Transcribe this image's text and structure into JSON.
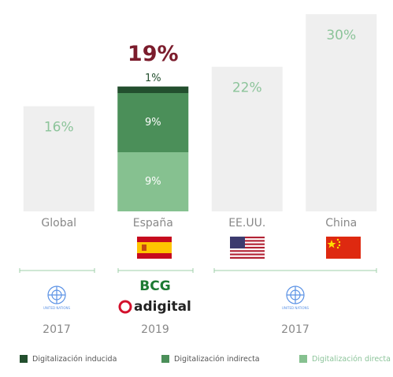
{
  "chart_data": {
    "type": "stacked_bar",
    "categories": [
      "Global",
      "España",
      "EE.UU.",
      "China"
    ],
    "series": [
      {
        "color": "#efefef",
        "label_color": "#8cc49a",
        "values": [
          16,
          null,
          22,
          30
        ],
        "value_labels": [
          "16%",
          null,
          "22%",
          "30%"
        ]
      },
      {
        "name": "Digitalización directa",
        "color": "#86c190",
        "label_color": "#ffffff",
        "values": [
          null,
          9,
          null,
          null
        ],
        "value_labels": [
          null,
          "9%",
          null,
          null
        ]
      },
      {
        "name": "Digitalización indirecta",
        "color": "#4b8f59",
        "label_color": "#ffffff",
        "values": [
          null,
          9,
          null,
          null
        ],
        "value_labels": [
          null,
          "9%",
          null,
          null
        ]
      },
      {
        "name": "Digitalización inducida",
        "color": "#234f2e",
        "label_color": "#234f2e",
        "values": [
          null,
          1,
          null,
          null
        ],
        "value_labels": [
          null,
          "1%",
          null,
          null
        ]
      }
    ],
    "totals": [
      null,
      19,
      null,
      null
    ],
    "total_labels": [
      null,
      "19%",
      null,
      null
    ],
    "total_color": "#7b1c2c",
    "ylim": [
      0,
      30
    ],
    "sources": [
      {
        "org": "UNITED NATIONS",
        "year": "2017"
      },
      {
        "orgs": [
          "BCG",
          "adigital"
        ],
        "year": "2019"
      },
      {
        "org": "UNITED NATIONS",
        "year": "2017"
      }
    ]
  }
}
